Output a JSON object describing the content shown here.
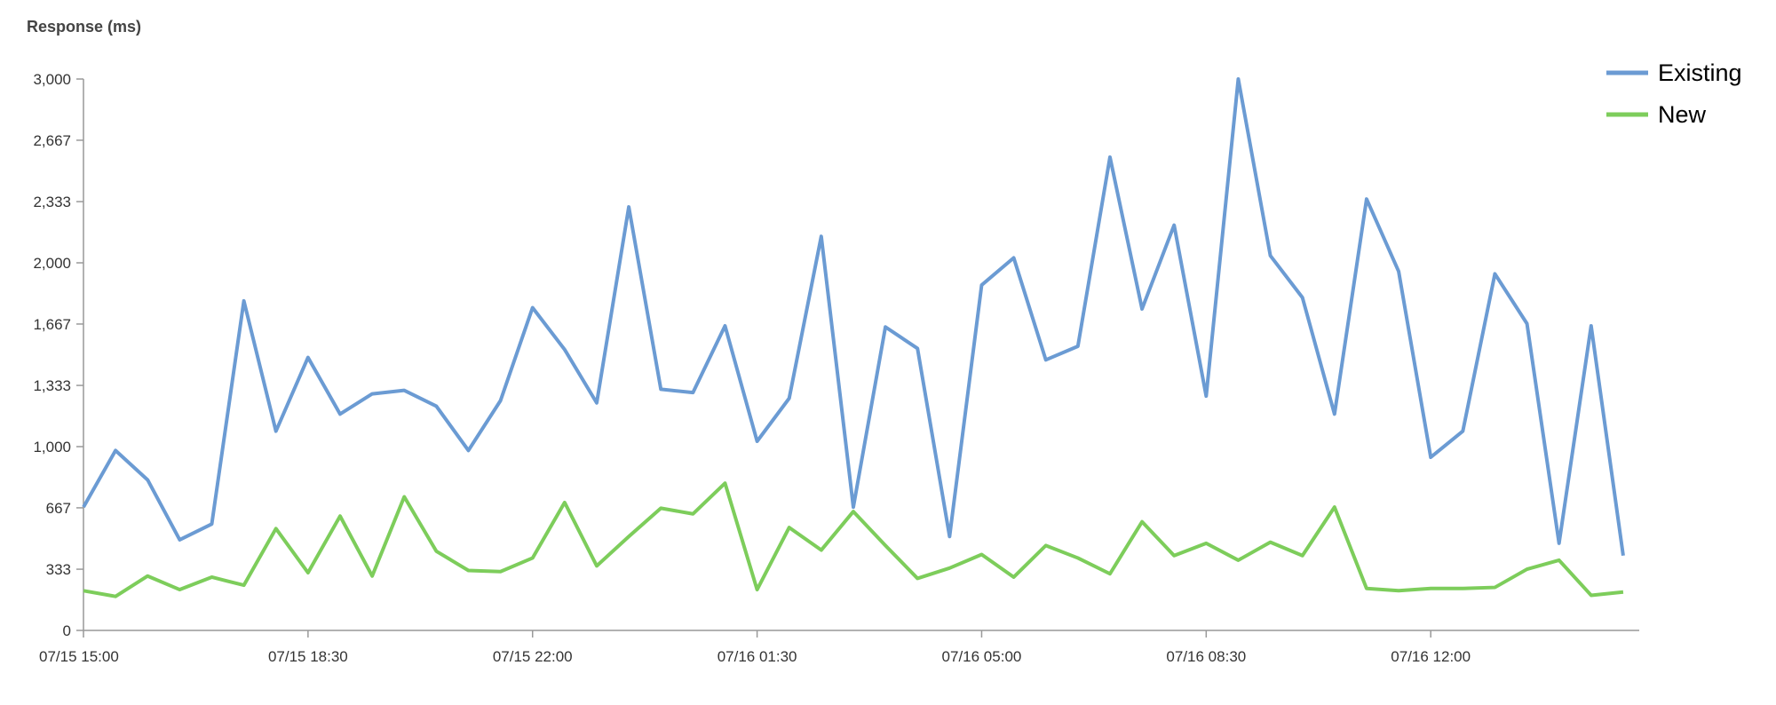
{
  "chart_data": {
    "type": "line",
    "title": "Response (ms)",
    "categories": [
      "07/15 15:00",
      null,
      null,
      null,
      null,
      null,
      null,
      "07/15 18:30",
      null,
      null,
      null,
      null,
      null,
      null,
      "07/15 22:00",
      null,
      null,
      null,
      null,
      null,
      null,
      "07/16 01:30",
      null,
      null,
      null,
      null,
      null,
      null,
      "07/16 05:00",
      null,
      null,
      null,
      null,
      null,
      null,
      "07/16 08:30",
      null,
      null,
      null,
      null,
      null,
      null,
      "07/16 12:00",
      null,
      null,
      null,
      null,
      null,
      null
    ],
    "series": [
      {
        "name": "Existing",
        "color": "#6b9bd3",
        "values": [
          671,
          979,
          819,
          493,
          579,
          1793,
          1084,
          1485,
          1177,
          1287,
          1306,
          1220,
          979,
          1250,
          1756,
          1528,
          1238,
          2304,
          1312,
          1294,
          1657,
          1029,
          1263,
          2144,
          671,
          1651,
          1534,
          511,
          1879,
          2027,
          1472,
          1546,
          2575,
          1749,
          2205,
          1275,
          3000,
          2039,
          1811,
          1177,
          2347,
          1953,
          942,
          1084,
          1940,
          1669,
          474,
          1657,
          407
        ]
      },
      {
        "name": "New",
        "color": "#7dcd5b",
        "values": [
          216,
          185,
          296,
          222,
          290,
          246,
          554,
          314,
          622,
          296,
          727,
          431,
          326,
          320,
          394,
          696,
          351,
          511,
          665,
          634,
          801,
          222,
          560,
          437,
          647,
          462,
          283,
          339,
          413,
          290,
          462,
          394,
          308,
          591,
          407,
          474,
          382,
          480,
          407,
          671,
          228,
          216,
          228,
          228,
          234,
          333,
          382,
          191,
          209
        ]
      }
    ],
    "ylim": [
      0,
      3000
    ],
    "yticks": [
      0,
      333,
      667,
      {
        "value": 1000,
        "label": "1,000"
      },
      {
        "value": 1333,
        "label": "1,333"
      },
      {
        "value": 1667,
        "label": "1,667"
      },
      {
        "value": 2000,
        "label": "2,000"
      },
      {
        "value": 2333,
        "label": "2,333"
      },
      {
        "value": 2667,
        "label": "2,667"
      },
      {
        "value": 3000,
        "label": "3,000"
      }
    ],
    "grid": false,
    "legend": "top-right"
  }
}
